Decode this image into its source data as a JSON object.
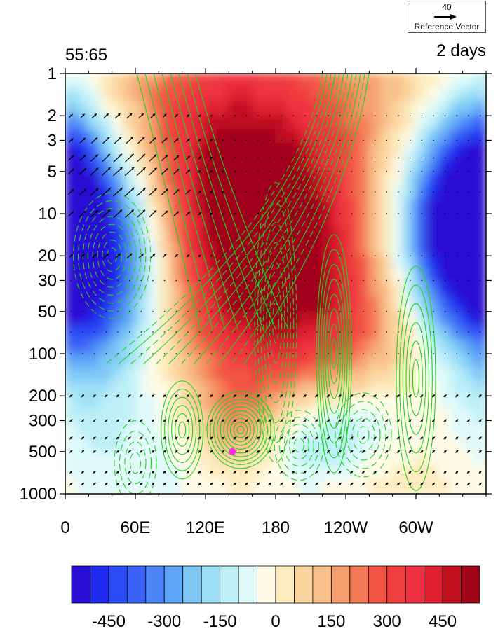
{
  "chart_data": {
    "type": "heatmap",
    "title_left": "55:65",
    "title_right": "2 days",
    "x_ticks": [
      "0",
      "60E",
      "120E",
      "180",
      "120W",
      "60W"
    ],
    "x_tick_lon": [
      0,
      60,
      120,
      180,
      240,
      300
    ],
    "xlim": [
      0,
      360
    ],
    "y_ticks": [
      "1",
      "2",
      "3",
      "5",
      "10",
      "20",
      "30",
      "50",
      "100",
      "200",
      "300",
      "500",
      "1000"
    ],
    "y_tick_values": [
      1,
      2,
      3,
      5,
      10,
      20,
      30,
      50,
      100,
      200,
      300,
      500,
      1000
    ],
    "ylim": [
      1000,
      1
    ],
    "y_scale": "log",
    "colorbar": {
      "labels": [
        "-450",
        "-300",
        "-150",
        "0",
        "150",
        "300",
        "450"
      ],
      "label_values": [
        -450,
        -300,
        -150,
        0,
        150,
        300,
        450
      ],
      "levels": [
        -550,
        -500,
        -450,
        -400,
        -350,
        -300,
        -250,
        -200,
        -150,
        -100,
        -50,
        0,
        50,
        100,
        150,
        200,
        250,
        300,
        350,
        400,
        450,
        500,
        550
      ],
      "colors": [
        "#2a0fd4",
        "#1f2bf0",
        "#2a4cf7",
        "#3a63f5",
        "#4a84f7",
        "#5ea6f7",
        "#7ec8f7",
        "#9ee0f7",
        "#bdf0f7",
        "#e0fafa",
        "#fffbe6",
        "#fdecc0",
        "#fbd6a0",
        "#f8c08a",
        "#f6a070",
        "#f47a55",
        "#f25545",
        "#ef3e3e",
        "#ee3040",
        "#e02030",
        "#c01020",
        "#a0061a"
      ]
    },
    "shading_features": [
      {
        "kind": "maximum",
        "lon": 130,
        "p": 5,
        "value": 400
      },
      {
        "kind": "minimum",
        "lon": 20,
        "p": 12,
        "value": -500
      },
      {
        "kind": "minimum",
        "lon": 245,
        "p": 350,
        "value": -150
      },
      {
        "kind": "maximum",
        "lon": 145,
        "p": 350,
        "value": 120
      }
    ],
    "contours": {
      "color": "#22d222",
      "negative_dashed": true
    },
    "vectors": {
      "reference_magnitude": "40",
      "reference_label": "Reference Vector"
    },
    "marker": {
      "lon": 143,
      "p": 500,
      "color": "#ff2de0"
    }
  }
}
